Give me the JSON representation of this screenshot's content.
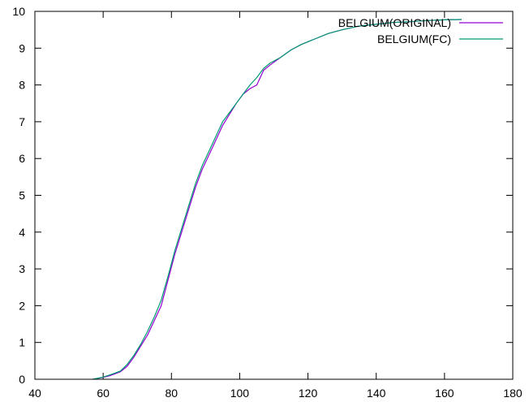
{
  "chart_data": {
    "type": "line",
    "title": "",
    "xlabel": "",
    "ylabel": "",
    "xlim": [
      40,
      180
    ],
    "ylim": [
      0,
      10
    ],
    "x_ticks": [
      40,
      60,
      80,
      100,
      120,
      140,
      160,
      180
    ],
    "y_ticks": [
      0,
      1,
      2,
      3,
      4,
      5,
      6,
      7,
      8,
      9,
      10
    ],
    "grid": false,
    "legend_position": "top-right",
    "series": [
      {
        "name": "BELGIUM(ORIGINAL)",
        "color": "#9400d3",
        "points": [
          [
            57,
            0.0
          ],
          [
            60,
            0.05
          ],
          [
            62,
            0.1
          ],
          [
            65,
            0.2
          ],
          [
            67,
            0.35
          ],
          [
            69,
            0.6
          ],
          [
            71,
            0.9
          ],
          [
            73,
            1.2
          ],
          [
            75,
            1.6
          ],
          [
            77,
            2.0
          ],
          [
            79,
            2.7
          ],
          [
            81,
            3.4
          ],
          [
            83,
            4.0
          ],
          [
            85,
            4.6
          ],
          [
            87,
            5.2
          ],
          [
            89,
            5.7
          ],
          [
            91,
            6.1
          ],
          [
            93,
            6.5
          ],
          [
            95,
            6.9
          ],
          [
            97,
            7.2
          ],
          [
            99,
            7.5
          ],
          [
            101,
            7.75
          ],
          [
            103,
            7.9
          ],
          [
            105,
            8.0
          ],
          [
            107,
            8.4
          ],
          [
            109,
            8.55
          ],
          [
            112,
            8.75
          ],
          [
            115,
            8.95
          ],
          [
            118,
            9.1
          ],
          [
            122,
            9.25
          ],
          [
            126,
            9.4
          ],
          [
            130,
            9.5
          ],
          [
            135,
            9.6
          ],
          [
            140,
            9.65
          ],
          [
            145,
            9.7
          ],
          [
            150,
            9.72
          ],
          [
            155,
            9.75
          ],
          [
            160,
            9.77
          ],
          [
            165,
            9.78
          ]
        ]
      },
      {
        "name": "BELGIUM(FC)",
        "color": "#009e73",
        "points": [
          [
            57,
            0.0
          ],
          [
            60,
            0.06
          ],
          [
            62,
            0.12
          ],
          [
            65,
            0.22
          ],
          [
            67,
            0.4
          ],
          [
            69,
            0.65
          ],
          [
            71,
            0.95
          ],
          [
            73,
            1.3
          ],
          [
            75,
            1.7
          ],
          [
            77,
            2.15
          ],
          [
            79,
            2.8
          ],
          [
            81,
            3.5
          ],
          [
            83,
            4.1
          ],
          [
            85,
            4.7
          ],
          [
            87,
            5.3
          ],
          [
            89,
            5.8
          ],
          [
            91,
            6.2
          ],
          [
            93,
            6.6
          ],
          [
            95,
            7.0
          ],
          [
            97,
            7.25
          ],
          [
            99,
            7.5
          ],
          [
            101,
            7.75
          ],
          [
            103,
            8.0
          ],
          [
            105,
            8.2
          ],
          [
            107,
            8.45
          ],
          [
            109,
            8.6
          ],
          [
            112,
            8.75
          ],
          [
            115,
            8.95
          ],
          [
            118,
            9.1
          ],
          [
            122,
            9.25
          ],
          [
            126,
            9.4
          ],
          [
            130,
            9.5
          ],
          [
            135,
            9.6
          ],
          [
            140,
            9.65
          ],
          [
            145,
            9.7
          ],
          [
            150,
            9.72
          ],
          [
            155,
            9.75
          ],
          [
            160,
            9.77
          ],
          [
            165,
            9.78
          ]
        ]
      }
    ]
  }
}
